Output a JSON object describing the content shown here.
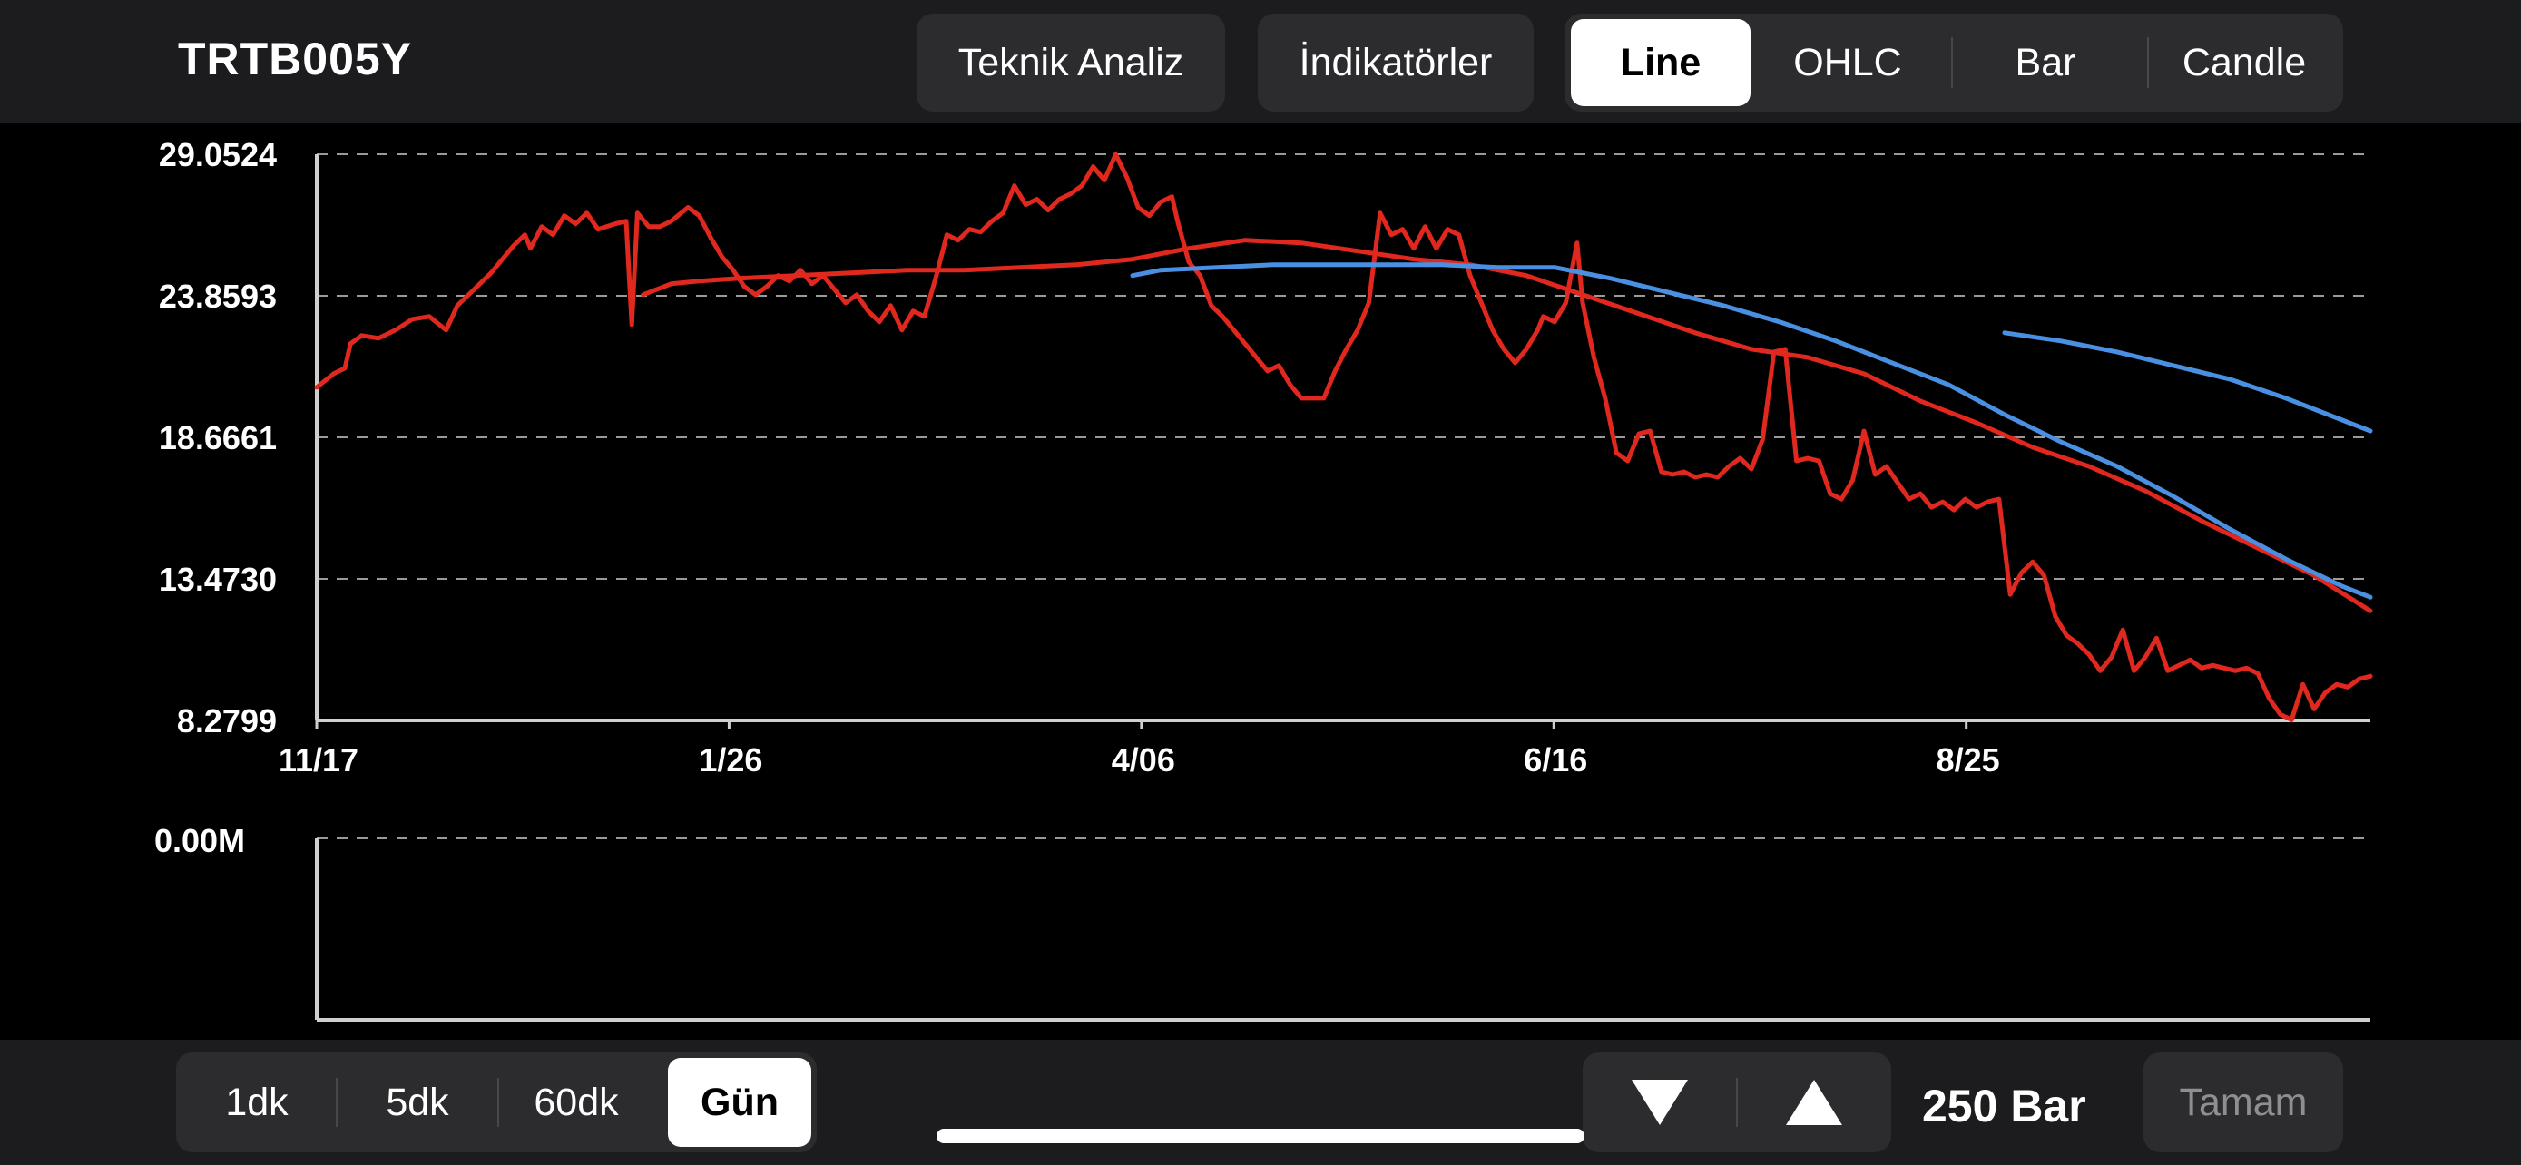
{
  "header": {
    "symbol": "TRTB005Y",
    "technical_analysis_label": "Teknik Analiz",
    "indicators_label": "İndikatörler",
    "chart_types": [
      {
        "label": "Line",
        "active": true
      },
      {
        "label": "OHLC",
        "active": false
      },
      {
        "label": "Bar",
        "active": false
      },
      {
        "label": "Candle",
        "active": false
      }
    ]
  },
  "footer": {
    "timeframes": [
      {
        "label": "1dk",
        "active": false
      },
      {
        "label": "5dk",
        "active": false
      },
      {
        "label": "60dk",
        "active": false
      },
      {
        "label": "Gün",
        "active": true
      }
    ],
    "bar_count": "250 Bar",
    "done_label": "Tamam",
    "down_icon": "triangle-down-icon",
    "up_icon": "triangle-up-icon"
  },
  "chart_data": {
    "type": "line",
    "y_ticks": [
      "29.0524",
      "23.8593",
      "18.6661",
      "13.4730",
      "8.2799"
    ],
    "ylim": [
      8.2799,
      29.0524
    ],
    "x_ticks": [
      "11/17",
      "1/26",
      "4/06",
      "6/16",
      "8/25"
    ],
    "bar_count": 250,
    "x_tick_index": [
      0,
      50,
      100,
      150,
      200
    ],
    "grid": true,
    "colors": {
      "price": "#e0281e",
      "ma_blue": "#4a90e2",
      "grid": "#9a9a9a",
      "axis": "#cfcfcf"
    },
    "series": [
      {
        "role": "price",
        "points": [
          [
            0,
            20.5
          ],
          [
            3,
            21.0
          ],
          [
            5,
            21.2
          ],
          [
            6,
            22.1
          ],
          [
            8,
            22.4
          ],
          [
            11,
            22.3
          ],
          [
            14,
            22.6
          ],
          [
            17,
            23.0
          ],
          [
            20,
            23.1
          ],
          [
            23,
            22.6
          ],
          [
            25,
            23.5
          ],
          [
            28,
            24.1
          ],
          [
            31,
            24.7
          ],
          [
            33,
            25.2
          ],
          [
            35,
            25.7
          ],
          [
            37,
            26.1
          ],
          [
            38,
            25.6
          ],
          [
            40,
            26.4
          ],
          [
            42,
            26.1
          ],
          [
            44,
            26.8
          ],
          [
            46,
            26.5
          ],
          [
            48,
            26.9
          ],
          [
            50,
            26.3
          ],
          [
            53,
            26.5
          ],
          [
            55,
            26.6
          ],
          [
            56,
            22.8
          ],
          [
            57,
            26.9
          ],
          [
            59,
            26.4
          ],
          [
            61,
            26.4
          ],
          [
            63,
            26.6
          ],
          [
            66,
            27.1
          ],
          [
            68,
            26.8
          ],
          [
            70,
            26.0
          ],
          [
            72,
            25.3
          ],
          [
            74,
            24.8
          ],
          [
            76,
            24.2
          ],
          [
            78,
            23.9
          ],
          [
            80,
            24.2
          ],
          [
            82,
            24.6
          ],
          [
            84,
            24.4
          ],
          [
            86,
            24.8
          ],
          [
            88,
            24.3
          ],
          [
            90,
            24.6
          ],
          [
            92,
            24.1
          ],
          [
            94,
            23.6
          ],
          [
            96,
            23.9
          ],
          [
            98,
            23.3
          ],
          [
            100,
            22.9
          ],
          [
            102,
            23.5
          ],
          [
            104,
            22.6
          ],
          [
            106,
            23.3
          ],
          [
            108,
            23.1
          ],
          [
            110,
            24.5
          ],
          [
            112,
            26.1
          ],
          [
            114,
            25.9
          ],
          [
            116,
            26.3
          ],
          [
            118,
            26.2
          ],
          [
            120,
            26.6
          ],
          [
            122,
            26.9
          ],
          [
            124,
            27.9
          ],
          [
            126,
            27.2
          ],
          [
            128,
            27.4
          ],
          [
            130,
            27.0
          ],
          [
            132,
            27.4
          ],
          [
            134,
            27.6
          ],
          [
            136,
            27.9
          ],
          [
            138,
            28.6
          ],
          [
            140,
            28.1
          ],
          [
            142,
            29.05
          ],
          [
            144,
            28.2
          ],
          [
            146,
            27.1
          ],
          [
            148,
            26.8
          ],
          [
            150,
            27.3
          ],
          [
            152,
            27.5
          ],
          [
            153,
            26.6
          ],
          [
            155,
            25.1
          ],
          [
            157,
            24.6
          ],
          [
            159,
            23.5
          ],
          [
            161,
            23.1
          ],
          [
            163,
            22.6
          ],
          [
            165,
            22.1
          ],
          [
            167,
            21.6
          ],
          [
            169,
            21.1
          ],
          [
            171,
            21.3
          ],
          [
            173,
            20.6
          ],
          [
            175,
            20.1
          ],
          [
            177,
            20.1
          ],
          [
            179,
            20.1
          ],
          [
            181,
            21.1
          ],
          [
            183,
            21.9
          ],
          [
            185,
            22.6
          ],
          [
            187,
            23.6
          ],
          [
            189,
            26.9
          ],
          [
            191,
            26.1
          ],
          [
            193,
            26.3
          ],
          [
            195,
            25.6
          ],
          [
            197,
            26.4
          ],
          [
            199,
            25.6
          ],
          [
            201,
            26.3
          ],
          [
            203,
            26.1
          ],
          [
            205,
            24.6
          ],
          [
            207,
            23.6
          ],
          [
            209,
            22.6
          ],
          [
            211,
            21.9
          ],
          [
            213,
            21.4
          ],
          [
            215,
            21.9
          ],
          [
            217,
            22.6
          ],
          [
            218,
            23.1
          ],
          [
            220,
            22.9
          ],
          [
            222,
            23.6
          ],
          [
            224,
            25.8
          ],
          [
            225,
            23.6
          ],
          [
            227,
            21.6
          ],
          [
            229,
            20.1
          ],
          [
            231,
            18.1
          ],
          [
            233,
            17.8
          ],
          [
            235,
            18.8
          ],
          [
            237,
            18.9
          ],
          [
            239,
            17.4
          ],
          [
            241,
            17.3
          ],
          [
            243,
            17.4
          ],
          [
            245,
            17.2
          ],
          [
            247,
            17.3
          ],
          [
            249,
            17.2
          ],
          [
            251,
            17.6
          ],
          [
            253,
            17.9
          ],
          [
            255,
            17.5
          ],
          [
            257,
            18.6
          ],
          [
            259,
            21.8
          ],
          [
            261,
            21.9
          ],
          [
            263,
            17.8
          ],
          [
            265,
            17.9
          ],
          [
            267,
            17.8
          ],
          [
            269,
            16.6
          ],
          [
            271,
            16.4
          ],
          [
            273,
            17.1
          ],
          [
            275,
            18.9
          ],
          [
            277,
            17.3
          ],
          [
            279,
            17.6
          ],
          [
            281,
            17.0
          ],
          [
            283,
            16.4
          ],
          [
            285,
            16.6
          ],
          [
            287,
            16.1
          ],
          [
            289,
            16.3
          ],
          [
            291,
            16.0
          ],
          [
            293,
            16.4
          ],
          [
            295,
            16.1
          ],
          [
            297,
            16.3
          ],
          [
            299,
            16.4
          ],
          [
            301,
            12.9
          ],
          [
            303,
            13.7
          ],
          [
            305,
            14.1
          ],
          [
            307,
            13.6
          ],
          [
            309,
            12.1
          ],
          [
            311,
            11.4
          ],
          [
            313,
            11.1
          ],
          [
            315,
            10.7
          ],
          [
            317,
            10.1
          ],
          [
            319,
            10.6
          ],
          [
            321,
            11.6
          ],
          [
            323,
            10.1
          ],
          [
            325,
            10.6
          ],
          [
            327,
            11.3
          ],
          [
            329,
            10.1
          ],
          [
            331,
            10.3
          ],
          [
            333,
            10.5
          ],
          [
            335,
            10.2
          ],
          [
            337,
            10.3
          ],
          [
            339,
            10.2
          ],
          [
            341,
            10.1
          ],
          [
            343,
            10.2
          ],
          [
            345,
            10.0
          ],
          [
            347,
            9.1
          ],
          [
            349,
            8.5
          ],
          [
            351,
            8.3
          ],
          [
            353,
            9.6
          ],
          [
            355,
            8.7
          ],
          [
            357,
            9.3
          ],
          [
            359,
            9.6
          ],
          [
            361,
            9.5
          ],
          [
            363,
            9.8
          ],
          [
            365,
            9.9
          ]
        ]
      },
      {
        "role": "ma_red",
        "points": [
          [
            58,
            23.9
          ],
          [
            63,
            24.3
          ],
          [
            68,
            24.4
          ],
          [
            75,
            24.5
          ],
          [
            85,
            24.6
          ],
          [
            95,
            24.7
          ],
          [
            105,
            24.8
          ],
          [
            115,
            24.8
          ],
          [
            125,
            24.9
          ],
          [
            135,
            25.0
          ],
          [
            145,
            25.2
          ],
          [
            155,
            25.6
          ],
          [
            165,
            25.9
          ],
          [
            175,
            25.8
          ],
          [
            185,
            25.5
          ],
          [
            195,
            25.2
          ],
          [
            205,
            25.0
          ],
          [
            215,
            24.6
          ],
          [
            225,
            23.9
          ],
          [
            235,
            23.2
          ],
          [
            245,
            22.5
          ],
          [
            255,
            21.9
          ],
          [
            265,
            21.6
          ],
          [
            275,
            21.0
          ],
          [
            285,
            20.0
          ],
          [
            295,
            19.2
          ],
          [
            305,
            18.3
          ],
          [
            315,
            17.6
          ],
          [
            325,
            16.7
          ],
          [
            335,
            15.6
          ],
          [
            345,
            14.6
          ],
          [
            355,
            13.6
          ],
          [
            365,
            12.3
          ]
        ]
      },
      {
        "role": "ma_blue",
        "points": [
          [
            145,
            24.6
          ],
          [
            150,
            24.8
          ],
          [
            160,
            24.9
          ],
          [
            170,
            25.0
          ],
          [
            180,
            25.0
          ],
          [
            190,
            25.0
          ],
          [
            200,
            25.0
          ],
          [
            210,
            24.9
          ],
          [
            220,
            24.9
          ],
          [
            230,
            24.5
          ],
          [
            240,
            24.0
          ],
          [
            250,
            23.5
          ],
          [
            260,
            22.9
          ],
          [
            270,
            22.2
          ],
          [
            280,
            21.4
          ],
          [
            290,
            20.6
          ],
          [
            300,
            19.5
          ],
          [
            310,
            18.5
          ],
          [
            320,
            17.6
          ],
          [
            330,
            16.5
          ],
          [
            340,
            15.3
          ],
          [
            350,
            14.2
          ],
          [
            360,
            13.2
          ],
          [
            365,
            12.8
          ]
        ]
      },
      {
        "role": "ma_blue_long",
        "points": [
          [
            300,
            22.5
          ],
          [
            310,
            22.2
          ],
          [
            320,
            21.8
          ],
          [
            330,
            21.3
          ],
          [
            340,
            20.8
          ],
          [
            350,
            20.1
          ],
          [
            360,
            19.3
          ],
          [
            365,
            18.9
          ]
        ]
      }
    ],
    "volume": {
      "y_tick": "0.00M",
      "values": []
    }
  }
}
